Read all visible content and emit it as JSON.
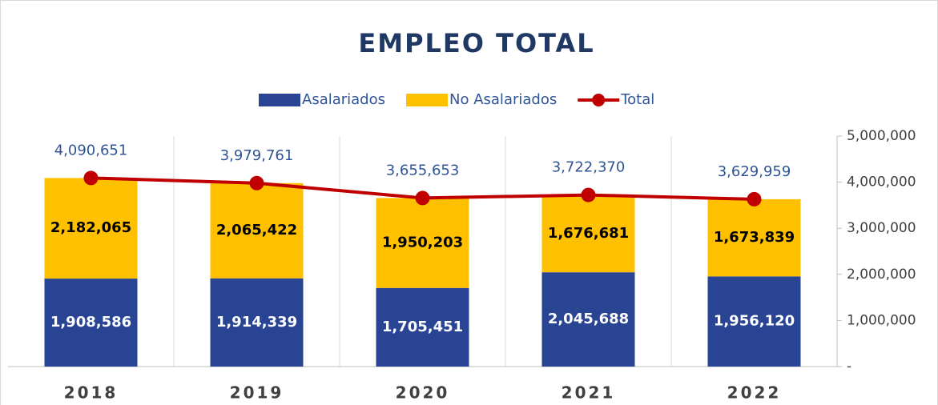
{
  "chart_data": {
    "type": "bar",
    "stacked": true,
    "title": "EMPLEO TOTAL",
    "categories": [
      "2018",
      "2019",
      "2020",
      "2021",
      "2022"
    ],
    "series": [
      {
        "name": "Asalariados",
        "color": "#2a4494",
        "values": [
          1908586,
          1914339,
          1705451,
          2045688,
          1956120
        ],
        "value_labels": [
          "1,908,586",
          "1,914,339",
          "1,705,451",
          "2,045,688",
          "1,956,120"
        ],
        "label_color": "#ffffff"
      },
      {
        "name": "No Asalariados",
        "color": "#ffc000",
        "values": [
          2182065,
          2065422,
          1950203,
          1676681,
          1673839
        ],
        "value_labels": [
          "2,182,065",
          "2,065,422",
          "1,950,203",
          "1,676,681",
          "1,673,839"
        ],
        "label_color": "#000000"
      },
      {
        "name": "Total",
        "type": "line",
        "color": "#c00000",
        "values": [
          4090651,
          3979761,
          3655653,
          3722370,
          3629959
        ],
        "value_labels": [
          "4,090,651",
          "3,979,761",
          "3,655,653",
          "3,722,370",
          "3,629,959"
        ],
        "label_color": "#2f5597"
      }
    ],
    "ylim": [
      0,
      5000000
    ],
    "yticks": [
      {
        "value": 0,
        "label": "-"
      },
      {
        "value": 1000000,
        "label": "1,000,000"
      },
      {
        "value": 2000000,
        "label": "2,000,000"
      },
      {
        "value": 3000000,
        "label": "3,000,000"
      },
      {
        "value": 4000000,
        "label": "4,000,000"
      },
      {
        "value": 5000000,
        "label": "5,000,000"
      }
    ],
    "yaxis_side": "right"
  }
}
